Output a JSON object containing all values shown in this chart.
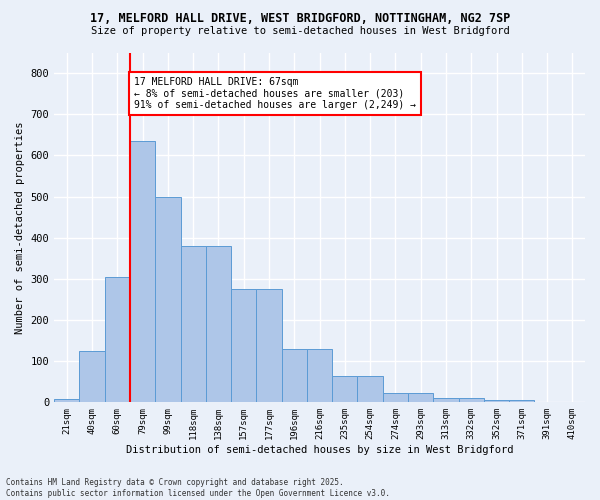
{
  "title1": "17, MELFORD HALL DRIVE, WEST BRIDGFORD, NOTTINGHAM, NG2 7SP",
  "title2": "Size of property relative to semi-detached houses in West Bridgford",
  "xlabel": "Distribution of semi-detached houses by size in West Bridgford",
  "ylabel": "Number of semi-detached properties",
  "categories": [
    "21sqm",
    "40sqm",
    "60sqm",
    "79sqm",
    "99sqm",
    "118sqm",
    "138sqm",
    "157sqm",
    "177sqm",
    "196sqm",
    "216sqm",
    "235sqm",
    "254sqm",
    "274sqm",
    "293sqm",
    "313sqm",
    "332sqm",
    "352sqm",
    "371sqm",
    "391sqm",
    "410sqm"
  ],
  "values": [
    8,
    125,
    305,
    635,
    500,
    380,
    380,
    275,
    275,
    130,
    130,
    65,
    65,
    22,
    22,
    10,
    10,
    5,
    5,
    0,
    0
  ],
  "bar_color": "#aec6e8",
  "bar_edge_color": "#5b9bd5",
  "vline_color": "red",
  "annotation_title": "17 MELFORD HALL DRIVE: 67sqm",
  "annotation_line1": "← 8% of semi-detached houses are smaller (203)",
  "annotation_line2": "91% of semi-detached houses are larger (2,249) →",
  "annotation_box_color": "white",
  "annotation_box_edge": "red",
  "ylim": [
    0,
    850
  ],
  "yticks": [
    0,
    100,
    200,
    300,
    400,
    500,
    600,
    700,
    800
  ],
  "footnote1": "Contains HM Land Registry data © Crown copyright and database right 2025.",
  "footnote2": "Contains public sector information licensed under the Open Government Licence v3.0.",
  "bg_color": "#eaf0f9",
  "grid_color": "white"
}
